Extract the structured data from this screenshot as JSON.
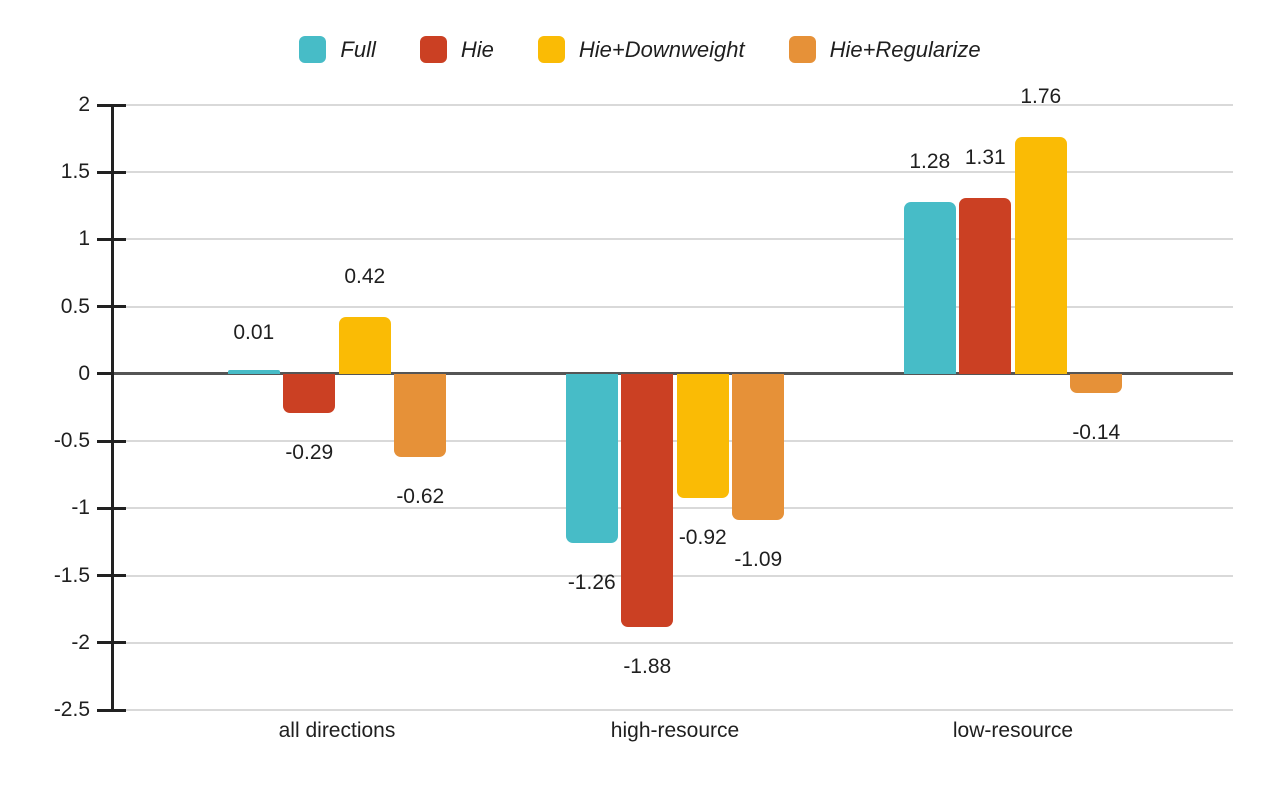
{
  "chart_data": {
    "type": "bar",
    "title": "",
    "xlabel": "",
    "ylabel": "",
    "categories": [
      "all directions",
      "high-resource",
      "low-resource"
    ],
    "series": [
      {
        "name": "Full",
        "color": "#47BCC7",
        "values": [
          0.01,
          -1.26,
          1.28
        ]
      },
      {
        "name": "Hie",
        "color": "#CB4023",
        "values": [
          -0.29,
          -1.88,
          1.31
        ]
      },
      {
        "name": "Hie+Downweight",
        "color": "#FABB05",
        "values": [
          0.42,
          -0.92,
          1.76
        ]
      },
      {
        "name": "Hie+Regularize",
        "color": "#E69138",
        "values": [
          -0.62,
          -1.09,
          -0.14
        ]
      }
    ],
    "data_labels": [
      [
        "0.01",
        "-1.26",
        "1.28"
      ],
      [
        "-0.29",
        "-1.88",
        "1.31"
      ],
      [
        "0.42",
        "-0.92",
        "1.76"
      ],
      [
        "-0.62",
        "-1.09",
        "-0.14"
      ]
    ],
    "ylim": [
      -2.5,
      2
    ],
    "y_ticks": [
      2,
      1.5,
      1,
      0.5,
      0,
      -0.5,
      -1,
      -1.5,
      -2,
      -2.5
    ],
    "y_tick_labels": [
      "2",
      "1.5",
      "1",
      "0.5",
      "0",
      "-0.5",
      "-1",
      "-1.5",
      "-2",
      "-2.5"
    ],
    "grid": true,
    "legend_position": "top",
    "colors": {
      "grid": "#d9d9d9",
      "axis": "#212121",
      "zero_line": "#555555",
      "text": "#1f1f1f",
      "background": "#ffffff"
    }
  }
}
